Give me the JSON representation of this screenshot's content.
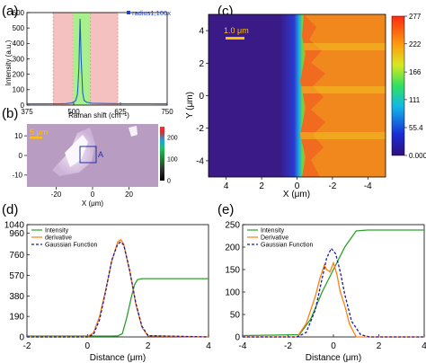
{
  "panels": {
    "a": "(a)",
    "b": "(b)",
    "c": "(c)",
    "d": "(d)",
    "e": "(e)"
  },
  "colors": {
    "intensity": "#2ca02c",
    "derivative": "#ff7f0e",
    "gaussian": "#1a1a9e",
    "raman_line": "#1f5fbf",
    "pink_band": "#f4c0c0",
    "green_band": "#a8f08c",
    "scale_bar": "#ffc000"
  },
  "chart_data": [
    {
      "id": "a",
      "type": "line",
      "xlabel": "Raman shift (cm⁻¹)",
      "ylabel": "Intensity (a.u.)",
      "xlim": [
        375,
        750
      ],
      "ylim": [
        0,
        600
      ],
      "xticks": [
        375,
        500,
        625,
        750
      ],
      "yticks": [
        0,
        100,
        200,
        300,
        400,
        500,
        600
      ],
      "legend": "radius1,100x",
      "legend_position": "top-right",
      "shaded_regions": [
        {
          "from": 445,
          "to": 498,
          "color": "pink"
        },
        {
          "from": 498,
          "to": 545,
          "color": "green"
        },
        {
          "from": 545,
          "to": 618,
          "color": "pink"
        }
      ],
      "x": [
        375,
        420,
        460,
        480,
        495,
        505,
        510,
        514,
        517,
        520,
        524,
        528,
        535,
        550,
        600,
        650,
        700,
        750
      ],
      "y": [
        8,
        8,
        9,
        10,
        14,
        28,
        70,
        240,
        560,
        300,
        80,
        30,
        18,
        12,
        10,
        9,
        9,
        8
      ]
    },
    {
      "id": "b",
      "type": "heatmap",
      "xlabel": "X (μm)",
      "xticks": [
        -20,
        0,
        20
      ],
      "yticks": [
        -10,
        0,
        10
      ],
      "xlim": [
        -36,
        36
      ],
      "ylim": [
        16,
        -16
      ],
      "scale_bar": "5 μm",
      "marker": "A",
      "colorbar_ticks": [
        0,
        100,
        200
      ]
    },
    {
      "id": "c",
      "type": "heatmap",
      "xlabel": "X (μm)",
      "ylabel": "Y (μm)",
      "xticks": [
        4,
        2,
        0,
        -2,
        -4
      ],
      "yticks": [
        4,
        2,
        0,
        -2,
        -4
      ],
      "xlim": [
        5,
        -5
      ],
      "ylim": [
        5,
        -5
      ],
      "scale_bar": "1.0 μm",
      "edge_x": 0.3,
      "colorbar_ticks": [
        "277",
        "222",
        "166",
        "111",
        "55.4",
        "0.000"
      ],
      "colorbar_range": [
        0,
        277
      ]
    },
    {
      "id": "d",
      "type": "line",
      "xlabel": "Distance (μm)",
      "xlim": [
        -2,
        4
      ],
      "ylim": [
        0,
        1040
      ],
      "xticks": [
        -2,
        0,
        2,
        4
      ],
      "yticks": [
        0,
        190,
        380,
        570,
        760,
        960,
        1040
      ],
      "legend_position": "top-left",
      "series": [
        {
          "name": "Intensity",
          "color": "intensity",
          "dashed": false,
          "x": [
            -2,
            0.8,
            1.0,
            1.15,
            1.3,
            1.45,
            1.55,
            1.65,
            1.8,
            2.0,
            4
          ],
          "y": [
            8,
            8,
            10,
            30,
            180,
            370,
            480,
            530,
            540,
            540,
            540
          ]
        },
        {
          "name": "derivative",
          "color": "derivative",
          "dashed": false,
          "x": [
            -2,
            0.0,
            0.2,
            0.4,
            0.6,
            0.8,
            1.0,
            1.1,
            1.2,
            1.4,
            1.6,
            1.8,
            2.0,
            4
          ],
          "y": [
            0,
            0,
            40,
            190,
            430,
            700,
            880,
            900,
            860,
            600,
            300,
            90,
            10,
            0
          ]
        },
        {
          "name": "Gaussian Function",
          "color": "gaussian",
          "dashed": true,
          "x": [
            -2,
            0.0,
            0.2,
            0.4,
            0.6,
            0.8,
            1.0,
            1.1,
            1.2,
            1.4,
            1.6,
            1.8,
            2.0,
            4
          ],
          "y": [
            0,
            0,
            25,
            160,
            420,
            710,
            860,
            880,
            850,
            610,
            310,
            100,
            12,
            0
          ]
        }
      ]
    },
    {
      "id": "e",
      "type": "line",
      "xlabel": "Distance (μm)",
      "xlim": [
        -4,
        4
      ],
      "ylim": [
        0,
        250
      ],
      "xticks": [
        -4,
        -2,
        0,
        2,
        4
      ],
      "yticks": [
        0,
        50,
        100,
        150,
        200,
        250
      ],
      "legend_position": "top-left",
      "series": [
        {
          "name": "Intensity",
          "color": "intensity",
          "dashed": false,
          "x": [
            -4,
            -1.5,
            -1.0,
            -0.5,
            0,
            0.5,
            1.0,
            1.5,
            2.0,
            4
          ],
          "y": [
            3,
            5,
            40,
            100,
            150,
            200,
            236,
            238,
            238,
            238
          ]
        },
        {
          "name": "Derivative",
          "color": "derivative",
          "dashed": false,
          "x": [
            -4,
            -1.6,
            -1.2,
            -0.8,
            -0.6,
            -0.4,
            -0.3,
            -0.15,
            0,
            0.15,
            0.3,
            0.5,
            0.7,
            0.9,
            1.0,
            4
          ],
          "y": [
            0,
            0,
            30,
            90,
            130,
            160,
            150,
            145,
            165,
            140,
            100,
            70,
            30,
            10,
            0,
            0
          ]
        },
        {
          "name": "Gaussian Function",
          "color": "gaussian",
          "dashed": true,
          "x": [
            -4,
            -1.6,
            -1.2,
            -0.8,
            -0.5,
            -0.3,
            -0.1,
            0.1,
            0.3,
            0.5,
            0.8,
            1.2,
            1.6,
            4
          ],
          "y": [
            0,
            0,
            10,
            60,
            130,
            175,
            197,
            185,
            145,
            95,
            35,
            5,
            0,
            0
          ]
        }
      ]
    }
  ]
}
